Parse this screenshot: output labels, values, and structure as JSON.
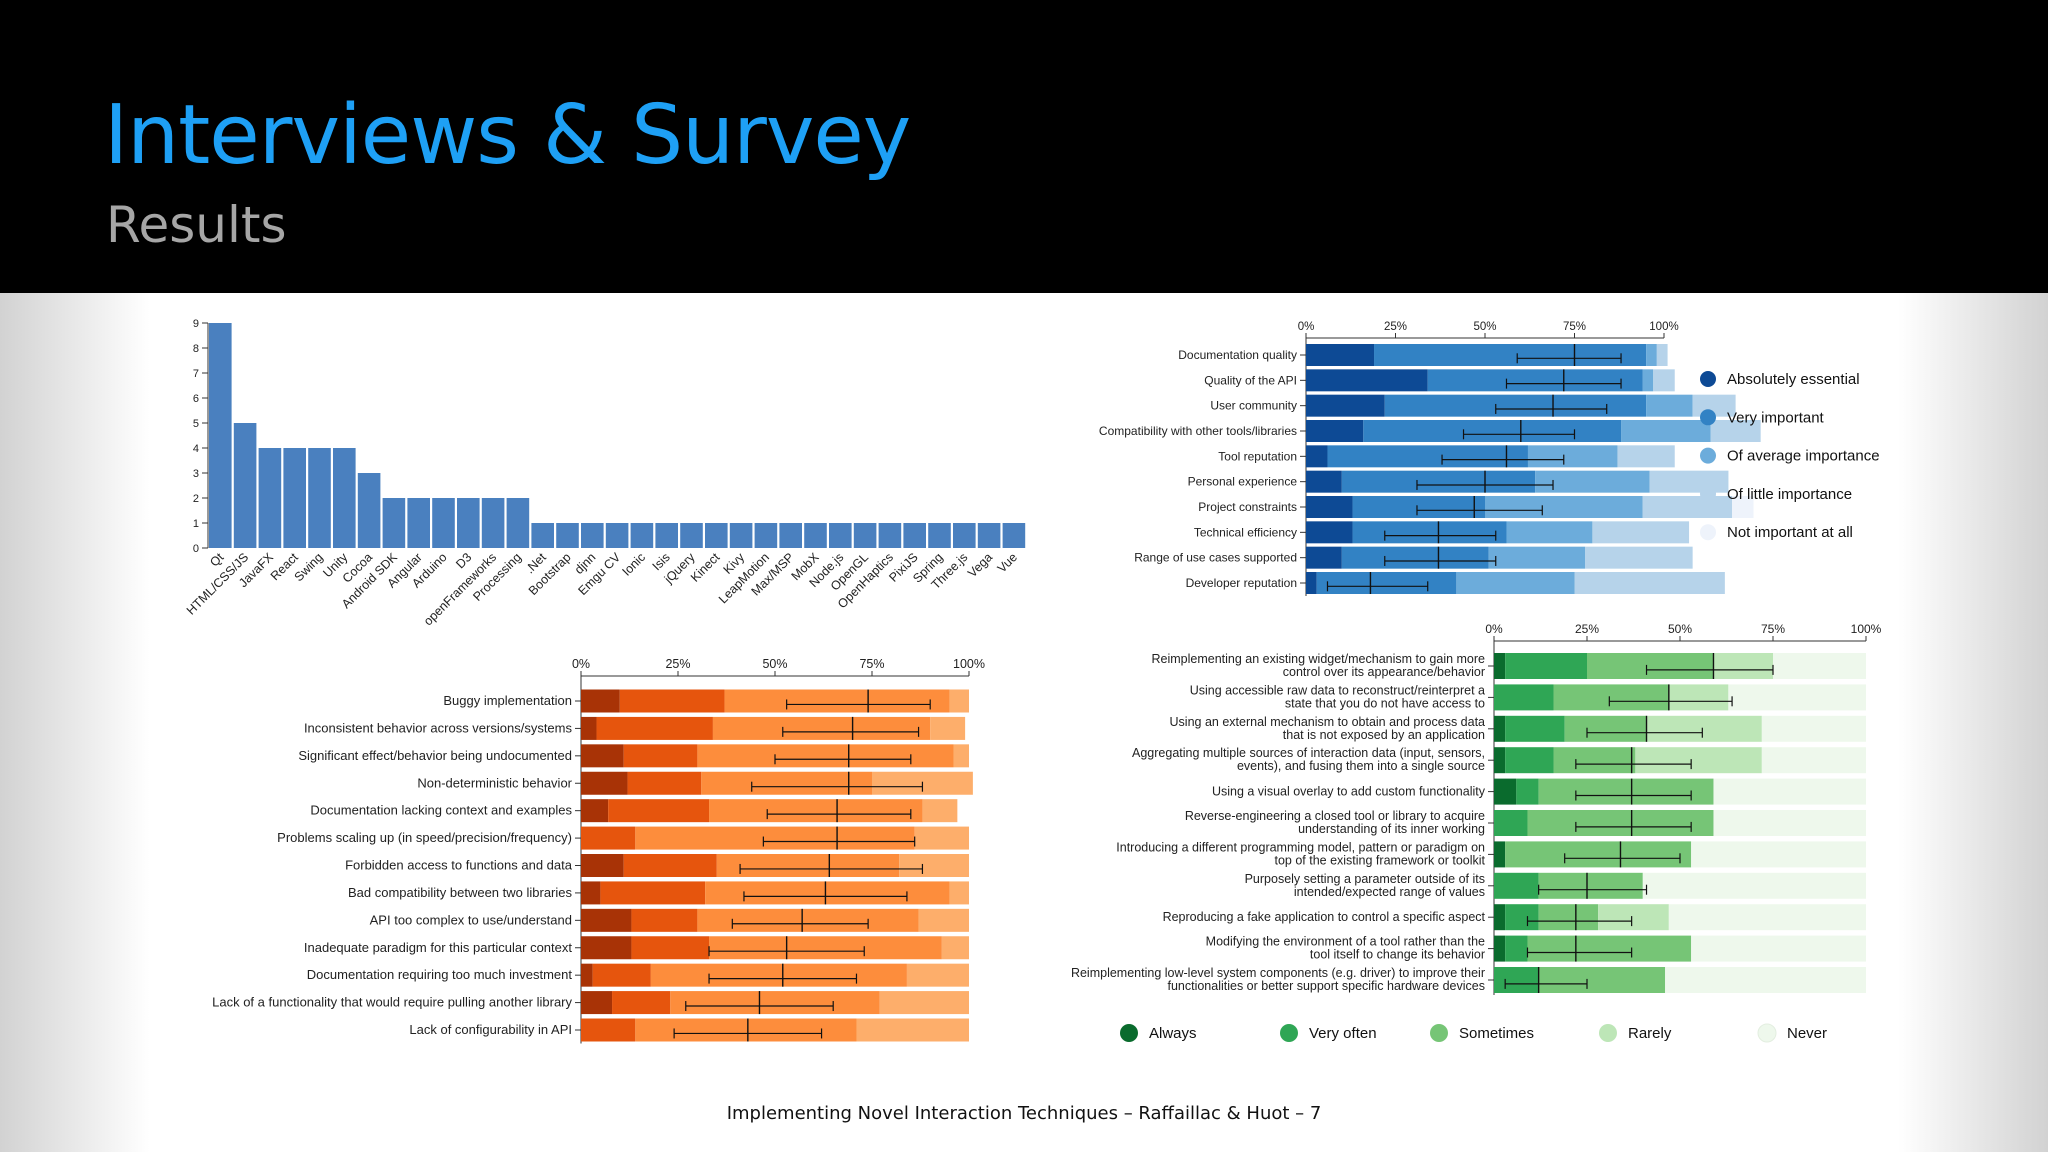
{
  "slide": {
    "title": "Interviews & Survey",
    "subtitle": "Results",
    "footer": "Implementing Novel Interaction Techniques – Raffaillac & Huot – 7"
  },
  "chart_data": [
    {
      "id": "toolkits",
      "type": "bar",
      "categories": [
        "Qt",
        "HTML/CSS/JS",
        "JavaFX",
        "React",
        "Swing",
        "Unity",
        "Cocoa",
        "Android SDK",
        "Angular",
        "Arduino",
        "D3",
        "openFrameworks",
        "Processing",
        ".Net",
        "Bootstrap",
        "djnn",
        "Emgu CV",
        "Ionic",
        "Isis",
        "jQuery",
        "Kinect",
        "Kivy",
        "LeapMotion",
        "Max/MSP",
        "MobX",
        "Node.js",
        "OpenGL",
        "OpenHaptics",
        "PixiJS",
        "Spring",
        "Three.js",
        "Vega",
        "Vue"
      ],
      "values": [
        9,
        5,
        4,
        4,
        4,
        4,
        3,
        2,
        2,
        2,
        2,
        2,
        2,
        1,
        1,
        1,
        1,
        1,
        1,
        1,
        1,
        1,
        1,
        1,
        1,
        1,
        1,
        1,
        1,
        1,
        1,
        1,
        1
      ],
      "yticks": [
        "0",
        "1",
        "2",
        "3",
        "4",
        "5",
        "6",
        "7",
        "8",
        "9"
      ],
      "ylim": [
        0,
        9
      ],
      "color": "#4a80bf"
    },
    {
      "id": "importance",
      "type": "bar",
      "stacked": true,
      "orientation": "horizontal",
      "xticks": [
        "0%",
        "25%",
        "50%",
        "75%",
        "100%"
      ],
      "categories": [
        "Documentation quality",
        "Quality of the API",
        "User community",
        "Compatibility with other tools/libraries",
        "Tool reputation",
        "Personal experience",
        "Project constraints",
        "Technical efficiency",
        "Range of use cases supported",
        "Developer reputation"
      ],
      "legend": [
        "Absolutely essential",
        "Very important",
        "Of average importance",
        "Of little importance",
        "Not important at all"
      ],
      "colors": [
        "#0d4a95",
        "#3282c4",
        "#6cacdb",
        "#b6d3ea",
        "#eef3fb"
      ],
      "series": [
        [
          19,
          76,
          3,
          3,
          0
        ],
        [
          34,
          60,
          3,
          6,
          0
        ],
        [
          22,
          73,
          13,
          12,
          0
        ],
        [
          16,
          72,
          25,
          14,
          0
        ],
        [
          6,
          56,
          25,
          16,
          0
        ],
        [
          10,
          54,
          32,
          22,
          0
        ],
        [
          13,
          37,
          44,
          25,
          6
        ],
        [
          13,
          43,
          24,
          27,
          0
        ],
        [
          10,
          41,
          27,
          30,
          0
        ],
        [
          3,
          39,
          33,
          42,
          0
        ]
      ],
      "mean": [
        75,
        72,
        69,
        60,
        56,
        50,
        47,
        37,
        37,
        18
      ],
      "ci": [
        [
          59,
          88
        ],
        [
          56,
          88
        ],
        [
          53,
          84
        ],
        [
          44,
          75
        ],
        [
          38,
          72
        ],
        [
          31,
          69
        ],
        [
          31,
          66
        ],
        [
          22,
          53
        ],
        [
          22,
          53
        ],
        [
          6,
          34
        ]
      ]
    },
    {
      "id": "problems",
      "type": "bar",
      "stacked": true,
      "orientation": "horizontal",
      "xticks": [
        "0%",
        "25%",
        "50%",
        "75%",
        "100%"
      ],
      "categories": [
        "Buggy implementation",
        "Inconsistent behavior across versions/systems",
        "Significant effect/behavior being undocumented",
        "Non-deterministic behavior",
        "Documentation lacking context and examples",
        "Problems scaling up (in speed/precision/frequency)",
        "Forbidden access to functions and data",
        "Bad compatibility between two libraries",
        "API too complex to use/understand",
        "Inadequate paradigm for this particular context",
        "Documentation requiring too much investment",
        "Lack of a functionality that would require pulling another library",
        "Lack of configurability in API"
      ],
      "colors": [
        "#a83306",
        "#e6550d",
        "#fd8d3c",
        "#fdae6b",
        "#fdd0a2"
      ],
      "series": [
        [
          10,
          27,
          58,
          5,
          0
        ],
        [
          4,
          30,
          56,
          9,
          0
        ],
        [
          11,
          19,
          66,
          4,
          0
        ],
        [
          12,
          19,
          44,
          26,
          0
        ],
        [
          7,
          26,
          55,
          9,
          0
        ],
        [
          0,
          14,
          72,
          14,
          0
        ],
        [
          11,
          24,
          47,
          18,
          0
        ],
        [
          5,
          27,
          63,
          5,
          0
        ],
        [
          13,
          17,
          57,
          13,
          0
        ],
        [
          13,
          20,
          60,
          7,
          0
        ],
        [
          3,
          15,
          66,
          16,
          0
        ],
        [
          8,
          15,
          54,
          23,
          0
        ],
        [
          0,
          14,
          57,
          29,
          0
        ]
      ],
      "mean": [
        74,
        70,
        69,
        69,
        66,
        66,
        64,
        63,
        57,
        53,
        52,
        46,
        43
      ],
      "ci": [
        [
          53,
          90
        ],
        [
          52,
          87
        ],
        [
          50,
          85
        ],
        [
          44,
          88
        ],
        [
          48,
          85
        ],
        [
          47,
          86
        ],
        [
          41,
          88
        ],
        [
          42,
          84
        ],
        [
          39,
          74
        ],
        [
          33,
          73
        ],
        [
          33,
          71
        ],
        [
          27,
          65
        ],
        [
          24,
          62
        ]
      ]
    },
    {
      "id": "workarounds",
      "type": "bar",
      "stacked": true,
      "orientation": "horizontal",
      "xticks": [
        "0%",
        "25%",
        "50%",
        "75%",
        "100%"
      ],
      "categories": [
        "Reimplementing an existing widget/mechanism to gain more control over its appearance/behavior",
        "Using accessible raw data to reconstruct/reinterpret a state that you do not have access to",
        "Using an external mechanism to obtain and process data that is not exposed by an application",
        "Aggregating multiple sources of interaction data (input, sensors, events), and fusing them into a single source",
        "Using a visual overlay to add custom functionality",
        "Reverse-engineering a closed tool or library to acquire understanding of its inner working",
        "Introducing a different programming model, pattern or paradigm on top of the existing framework or toolkit",
        "Purposely setting a parameter outside of its intended/expected range of values",
        "Reproducing a fake application to control a specific aspect",
        "Modifying the environment of a tool rather than the tool itself to change its behavior",
        "Reimplementing low-level system components (e.g. driver) to improve their functionalities or better support specific hardware devices"
      ],
      "legend": [
        "Always",
        "Very often",
        "Sometimes",
        "Rarely",
        "Never"
      ],
      "colors": [
        "#0a6b2d",
        "#2fa655",
        "#76c576",
        "#bde6b7",
        "#eef8ec"
      ],
      "series": [
        [
          3,
          22,
          34,
          16,
          25
        ],
        [
          0,
          16,
          31,
          16,
          37
        ],
        [
          3,
          16,
          22,
          31,
          28
        ],
        [
          3,
          13,
          22,
          34,
          28
        ],
        [
          6,
          6,
          47,
          0,
          41
        ],
        [
          0,
          9,
          50,
          0,
          41
        ],
        [
          3,
          0,
          50,
          0,
          47
        ],
        [
          0,
          12,
          28,
          0,
          60
        ],
        [
          3,
          9,
          16,
          19,
          53
        ],
        [
          3,
          6,
          44,
          0,
          47
        ],
        [
          0,
          12,
          34,
          0,
          54
        ]
      ],
      "mean": [
        59,
        47,
        41,
        37,
        37,
        37,
        34,
        25,
        22,
        22,
        12
      ],
      "ci": [
        [
          41,
          75
        ],
        [
          31,
          64
        ],
        [
          25,
          56
        ],
        [
          22,
          53
        ],
        [
          22,
          53
        ],
        [
          22,
          53
        ],
        [
          19,
          50
        ],
        [
          12,
          41
        ],
        [
          9,
          37
        ],
        [
          9,
          37
        ],
        [
          3,
          25
        ]
      ]
    }
  ]
}
